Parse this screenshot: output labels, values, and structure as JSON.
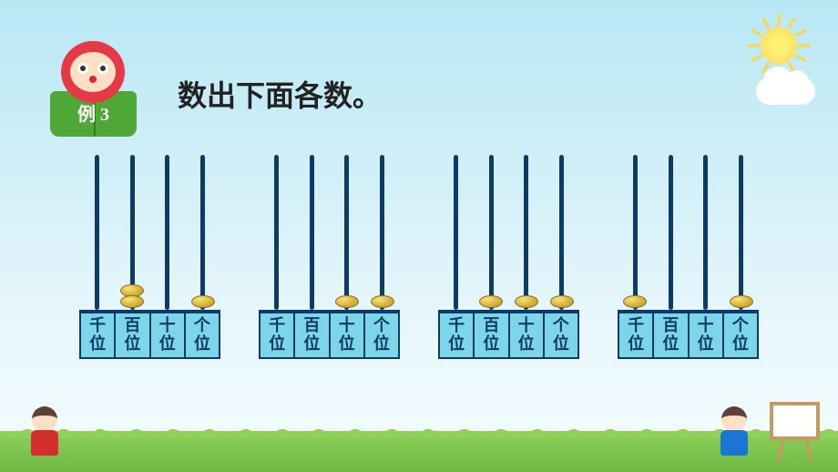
{
  "badge": {
    "label": "例 3"
  },
  "title": "数出下面各数。",
  "place_labels": [
    "千位",
    "百位",
    "十位",
    "个位"
  ],
  "abacuses": [
    {
      "beads": [
        0,
        2,
        0,
        1
      ]
    },
    {
      "beads": [
        0,
        0,
        1,
        1
      ]
    },
    {
      "beads": [
        0,
        1,
        1,
        1
      ]
    },
    {
      "beads": [
        1,
        0,
        0,
        1
      ]
    }
  ],
  "colors": {
    "rod": "#0d3b66",
    "label_bg": "#7cd5e8",
    "bead_light": "#f7e27a",
    "bead_dark": "#b8932a",
    "grass": "#8fd15b",
    "badge_red": "#e63946",
    "badge_green": "#4fa835"
  }
}
